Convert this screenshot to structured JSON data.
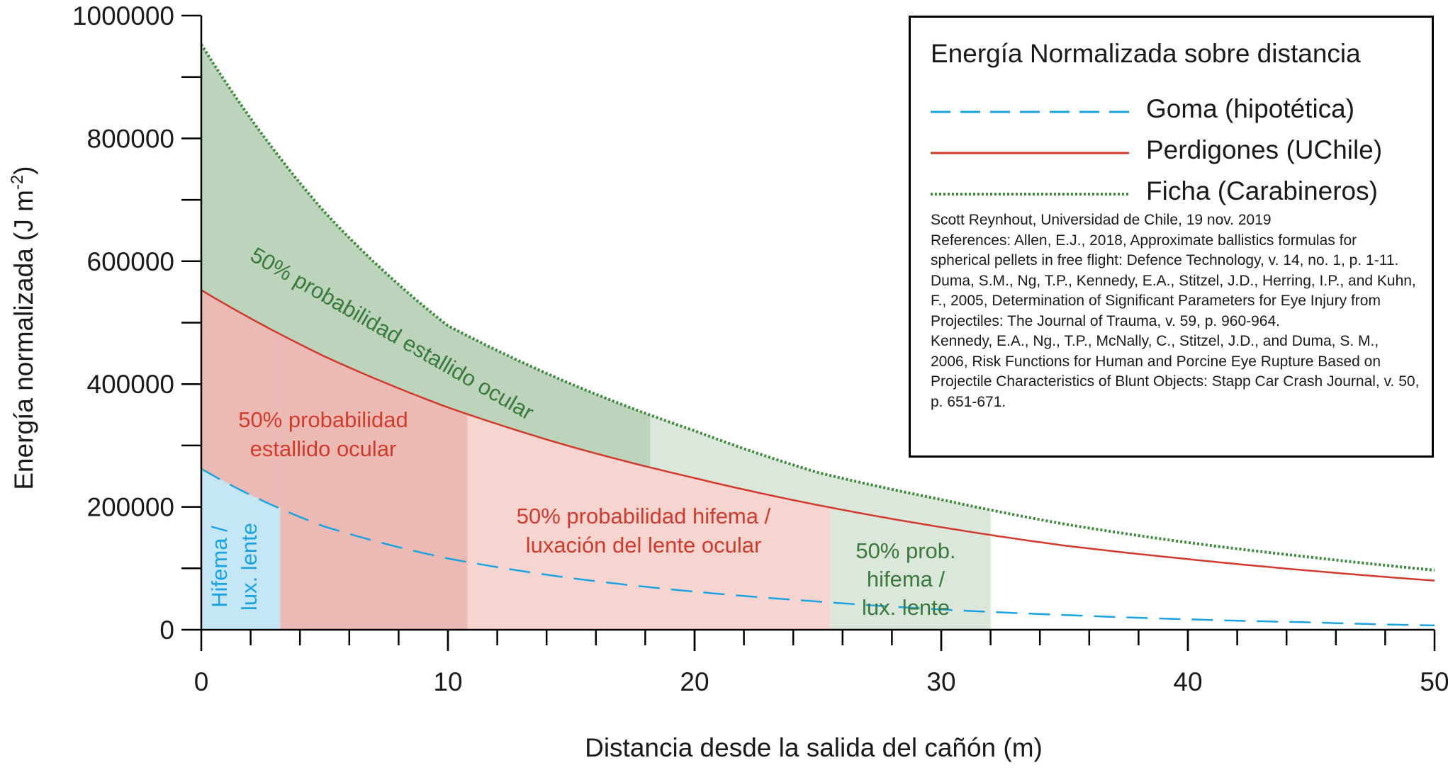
{
  "chart_data": {
    "type": "line",
    "title": "Energía Normalizada sobre distancia",
    "xlabel": "Distancia desde la salida del cañón (m)",
    "ylabel_main": "Energía normalizada (J m",
    "ylabel_sup": "-2",
    "ylabel_end": ")",
    "xlim": [
      0,
      50
    ],
    "ylim": [
      0,
      1000000
    ],
    "x_ticks": [
      0,
      10,
      20,
      30,
      40,
      50
    ],
    "x_tick_labels": [
      "0",
      "10",
      "20",
      "30",
      "40",
      "50"
    ],
    "y_ticks": [
      0,
      200000,
      400000,
      600000,
      800000,
      1000000
    ],
    "y_tick_labels": [
      "0",
      "200000",
      "400000",
      "600000",
      "800000",
      "1000000"
    ],
    "series": [
      {
        "name": "Goma (hipotética)",
        "style": "dashed",
        "color": "#1aa3e0",
        "x": [
          0,
          5,
          10,
          15,
          20,
          25,
          30,
          35,
          40,
          45,
          50
        ],
        "values": [
          262000,
          168000,
          116000,
          84000,
          62000,
          46000,
          33000,
          24000,
          17000,
          12000,
          7000
        ]
      },
      {
        "name": "Perdigones (UChile)",
        "style": "solid",
        "color": "#d23a2c",
        "x": [
          0,
          5,
          10,
          15,
          20,
          25,
          30,
          35,
          40,
          45,
          50
        ],
        "values": [
          553000,
          445000,
          362000,
          298000,
          247000,
          203000,
          167000,
          137000,
          115000,
          96000,
          80000
        ]
      },
      {
        "name": "Ficha (Carabineros)",
        "style": "dotted",
        "color": "#3a8a3a",
        "x": [
          0,
          5,
          10,
          15,
          20,
          25,
          30,
          35,
          40,
          45,
          50
        ],
        "values": [
          953000,
          680000,
          495000,
          400000,
          324000,
          256000,
          212000,
          172000,
          142000,
          118000,
          97000
        ]
      }
    ],
    "regions": [
      {
        "name": "ficha-50pct-rupture",
        "x0": 0,
        "x1": 18.2,
        "y_low_series": 1,
        "y_high_series": 2,
        "color": "#bcd3bc"
      },
      {
        "name": "ficha-50pct-hyphema",
        "x0": 18.2,
        "x1": 32,
        "y_low_series": 1,
        "y_high_series": 2,
        "color": "#dae7da"
      },
      {
        "name": "perdigones-50pct-rupture",
        "x0": 3.2,
        "x1": 10.8,
        "y_low": 0,
        "y_high_series": 1,
        "color": "#ebbab4"
      },
      {
        "name": "perdigones-50pct-rupture-top",
        "x0": 0,
        "x1": 3.2,
        "y_low_series": 0,
        "y_high_series": 1,
        "color": "#ebbab4"
      },
      {
        "name": "perdigones-50pct-hyphema",
        "x0": 10.8,
        "x1": 25.5,
        "y_low": 0,
        "y_high_series": 1,
        "color": "#f6d5d1"
      },
      {
        "name": "ficha-50pct-hyphema-lower",
        "x0": 25.5,
        "x1": 32,
        "y_low": 0,
        "y_high_series": 1,
        "color": "#dae7da"
      },
      {
        "name": "goma-50pct-hyphema",
        "x0": 0,
        "x1": 3.2,
        "y_low": 0,
        "y_high_series": 0,
        "color": "#c5e7f5"
      }
    ],
    "annotations": {
      "ficha_rupture": "50% probabilidad estallido ocular",
      "perdigones_rupture_1": "50% probabilidad",
      "perdigones_rupture_2": "estallido ocular",
      "perdigones_hyphema_1": "50% probabilidad hifema /",
      "perdigones_hyphema_2": "luxación del lente ocular",
      "ficha_hyphema_1": "50% prob.",
      "ficha_hyphema_2": "hifema /",
      "ficha_hyphema_3": "lux. lente",
      "goma_hyphema_1": "Hifema /",
      "goma_hyphema_2": "lux. lente"
    }
  },
  "legend": {
    "title": "Energía Normalizada sobre distancia",
    "items": [
      {
        "label": "Goma (hipotética)",
        "color": "#1aa3e0"
      },
      {
        "label": "Perdigones (UChile)",
        "color": "#d23a2c"
      },
      {
        "label": "Ficha (Carabineros)",
        "color": "#3a8a3a"
      }
    ],
    "references": [
      "Scott Reynhout, Universidad de Chile, 19 nov. 2019",
      "References: Allen, E.J., 2018, Approximate ballistics formulas for spherical pellets in free flight: Defence Technology, v. 14, no. 1, p. 1-11.",
      "Duma, S.M., Ng, T.P., Kennedy, E.A., Stitzel, J.D., Herring, I.P., and Kuhn, F., 2005, Determination of Significant Parameters for Eye Injury from Projectiles: The Journal of Trauma, v. 59, p. 960-964.",
      "Kennedy, E.A., Ng., T.P., McNally, C., Stitzel, J.D., and Duma, S. M., 2006, Risk Functions for Human and Porcine Eye Rupture Based on Projectile Characteristics of Blunt Objects: Stapp Car Crash Journal, v. 50, p. 651-671."
    ]
  }
}
